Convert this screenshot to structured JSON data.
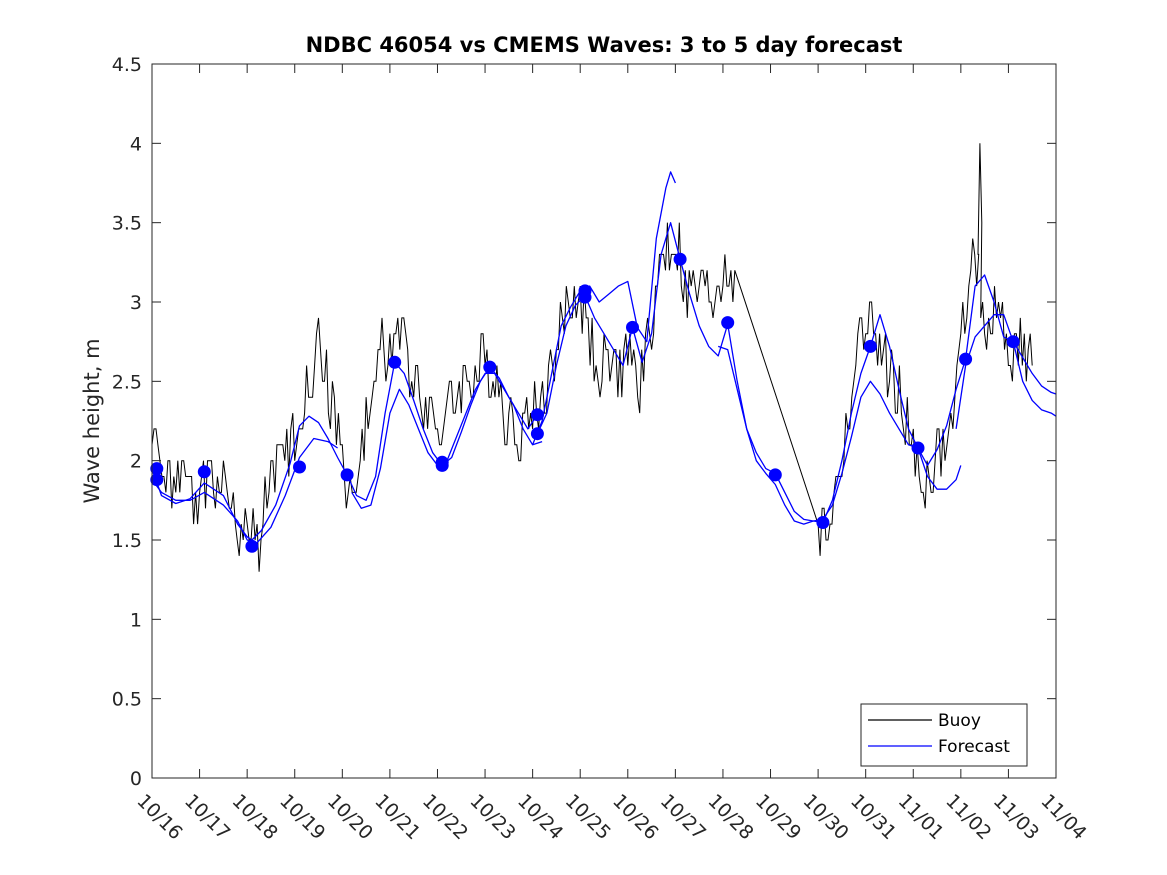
{
  "chart_data": {
    "type": "line",
    "title": "NDBC 46054 vs CMEMS Waves: 3 to 5 day forecast",
    "xlabel": "",
    "ylabel": "Wave height, m",
    "xlim": [
      0,
      19
    ],
    "ylim": [
      0,
      4.5
    ],
    "yticks": [
      0,
      0.5,
      1,
      1.5,
      2,
      2.5,
      3,
      3.5,
      4,
      4.5
    ],
    "ytick_labels": [
      "0",
      "0.5",
      "1",
      "1.5",
      "2",
      "2.5",
      "3",
      "3.5",
      "4",
      "4.5"
    ],
    "xticks": [
      0,
      1,
      2,
      3,
      4,
      5,
      6,
      7,
      8,
      9,
      10,
      11,
      12,
      13,
      14,
      15,
      16,
      17,
      18,
      19
    ],
    "xtick_labels": [
      "10/16",
      "10/17",
      "10/18",
      "10/19",
      "10/20",
      "10/21",
      "10/22",
      "10/23",
      "10/24",
      "10/25",
      "10/26",
      "10/27",
      "10/28",
      "10/29",
      "10/30",
      "10/31",
      "11/01",
      "11/02",
      "11/03",
      "11/04"
    ],
    "legend": {
      "position": "bottom-right",
      "entries": [
        "Buoy",
        "Forecast"
      ]
    },
    "colors": {
      "buoy": "#000000",
      "forecast": "#0000ff",
      "markers": "#0000ff",
      "axis": "#262626"
    },
    "buoy_anchors": {
      "x": [
        0.0,
        0.25,
        0.5,
        0.75,
        1.0,
        1.25,
        1.5,
        1.75,
        2.0,
        2.25,
        2.5,
        2.75,
        3.0,
        3.25,
        3.5,
        3.75,
        4.0,
        4.25,
        4.5,
        4.75,
        5.0,
        5.25,
        5.5,
        5.75,
        6.0,
        6.25,
        6.5,
        6.75,
        7.0,
        7.25,
        7.5,
        7.75,
        8.0,
        8.25,
        8.5,
        8.75,
        9.0,
        9.25,
        9.5,
        9.75,
        10.0,
        10.25,
        10.5,
        10.75,
        11.0,
        11.25,
        11.5,
        11.75,
        12.0,
        12.25,
        14.0,
        14.25,
        14.5,
        14.75,
        15.0,
        15.25,
        15.5,
        15.75,
        16.0,
        16.25,
        16.5,
        16.75,
        17.0,
        17.25,
        17.5,
        17.75,
        18.0,
        18.25,
        18.5
      ],
      "y": [
        2.1,
        2.05,
        1.8,
        1.8,
        1.85,
        1.95,
        1.85,
        1.6,
        1.5,
        1.5,
        1.9,
        1.95,
        2.2,
        2.5,
        2.7,
        2.4,
        2.0,
        1.7,
        2.2,
        2.7,
        2.7,
        2.8,
        2.5,
        2.4,
        2.2,
        2.3,
        2.5,
        2.5,
        2.6,
        2.5,
        2.2,
        2.2,
        2.3,
        2.4,
        2.7,
        3.0,
        3.05,
        2.7,
        2.6,
        2.5,
        2.7,
        2.4,
        2.9,
        3.3,
        3.4,
        3.0,
        3.1,
        3.0,
        3.2,
        3.2,
        1.55,
        1.6,
        2.0,
        2.5,
        2.9,
        2.7,
        2.6,
        2.4,
        2.0,
        1.85,
        2.0,
        2.1,
        2.7,
        3.4,
        2.9,
        2.9,
        2.7,
        2.7,
        2.6
      ],
      "spike": {
        "x": 17.4,
        "y": 4.0
      }
    },
    "forecast_series": [
      {
        "name": "forecast-run-1",
        "x": [
          0.0,
          0.2,
          0.5,
          0.8,
          1.1,
          1.5,
          1.8,
          2.0,
          2.1,
          2.3,
          2.6,
          2.9,
          3.1,
          3.3,
          3.5,
          3.7,
          3.9,
          4.1
        ],
        "y": [
          1.95,
          1.78,
          1.73,
          1.76,
          1.86,
          1.78,
          1.6,
          1.52,
          1.5,
          1.56,
          1.72,
          1.98,
          2.22,
          2.28,
          2.24,
          2.14,
          2.02,
          1.91
        ]
      },
      {
        "name": "forecast-run-2",
        "x": [
          0.0,
          0.2,
          0.5,
          0.8,
          1.1,
          1.5,
          1.8,
          2.0,
          2.2,
          2.5,
          2.8,
          3.1,
          3.4,
          3.7,
          3.9
        ],
        "y": [
          1.88,
          1.8,
          1.75,
          1.75,
          1.8,
          1.72,
          1.62,
          1.5,
          1.48,
          1.58,
          1.78,
          2.02,
          2.14,
          2.12,
          2.08
        ]
      },
      {
        "name": "forecast-run-3",
        "x": [
          4.1,
          4.3,
          4.5,
          4.7,
          4.9,
          5.1,
          5.3,
          5.5,
          5.7,
          5.9,
          6.1,
          6.3,
          6.5,
          6.7,
          6.9,
          7.1,
          7.3,
          7.5,
          7.7,
          7.9,
          8.1
        ],
        "y": [
          1.91,
          1.78,
          1.75,
          1.9,
          2.3,
          2.62,
          2.55,
          2.38,
          2.2,
          2.05,
          1.97,
          2.02,
          2.18,
          2.35,
          2.5,
          2.59,
          2.52,
          2.4,
          2.3,
          2.2,
          2.29
        ]
      },
      {
        "name": "forecast-run-4",
        "x": [
          4.2,
          4.4,
          4.6,
          4.8,
          5.0,
          5.2,
          5.4,
          5.6,
          5.8,
          6.0,
          6.2,
          6.4,
          6.6,
          6.8,
          7.0,
          7.2,
          7.4,
          7.6,
          7.8,
          8.0,
          8.2
        ],
        "y": [
          1.8,
          1.7,
          1.72,
          1.95,
          2.3,
          2.45,
          2.35,
          2.2,
          2.05,
          1.97,
          2.0,
          2.15,
          2.3,
          2.45,
          2.55,
          2.55,
          2.45,
          2.35,
          2.2,
          2.1,
          2.12
        ]
      },
      {
        "name": "forecast-run-5",
        "x": [
          8.1,
          8.3,
          8.5,
          8.7,
          8.9,
          9.1,
          9.3,
          9.5,
          9.7,
          9.9,
          10.1,
          10.3,
          10.5,
          10.7,
          10.9,
          11.1,
          11.3,
          11.5,
          11.7,
          11.9,
          12.1
        ],
        "y": [
          2.17,
          2.3,
          2.6,
          2.85,
          2.98,
          3.04,
          2.9,
          2.8,
          2.7,
          2.6,
          2.84,
          2.62,
          2.8,
          3.3,
          3.5,
          3.27,
          3.05,
          2.85,
          2.72,
          2.66,
          2.86
        ]
      },
      {
        "name": "forecast-run-6",
        "x": [
          8.0,
          8.2,
          8.4,
          8.6,
          8.8,
          9.0,
          9.2,
          9.4,
          9.6,
          9.8,
          10.0,
          10.2,
          10.4,
          10.6,
          10.8,
          10.9,
          11.0
        ],
        "y": [
          2.1,
          2.25,
          2.55,
          2.85,
          2.97,
          3.07,
          3.1,
          3.0,
          3.05,
          3.1,
          3.13,
          2.84,
          2.75,
          3.4,
          3.72,
          3.82,
          3.75
        ]
      },
      {
        "name": "forecast-run-7",
        "x": [
          12.1,
          12.3,
          12.5,
          12.7,
          12.9,
          13.1,
          13.3,
          13.5,
          13.7,
          13.9,
          14.1,
          14.3,
          14.5,
          14.7,
          14.9,
          15.1,
          15.3,
          15.5,
          15.7,
          15.9,
          16.1
        ],
        "y": [
          2.86,
          2.5,
          2.2,
          2.05,
          1.95,
          1.92,
          1.8,
          1.68,
          1.63,
          1.62,
          1.61,
          1.75,
          2.0,
          2.3,
          2.55,
          2.72,
          2.92,
          2.72,
          2.45,
          2.2,
          2.08
        ]
      },
      {
        "name": "forecast-run-8",
        "x": [
          11.9,
          12.1,
          12.3,
          12.5,
          12.7,
          12.9,
          13.1,
          13.3,
          13.5,
          13.7,
          13.9,
          14.1,
          14.3,
          14.5,
          14.7,
          14.9,
          15.1,
          15.3,
          15.5,
          15.7,
          15.9,
          16.1
        ],
        "y": [
          2.72,
          2.7,
          2.45,
          2.2,
          2.0,
          1.92,
          1.85,
          1.72,
          1.62,
          1.6,
          1.62,
          1.63,
          1.72,
          1.92,
          2.15,
          2.4,
          2.5,
          2.42,
          2.3,
          2.2,
          2.1,
          2.08
        ]
      },
      {
        "name": "forecast-run-9",
        "x": [
          16.1,
          16.3,
          16.5,
          16.7,
          16.9,
          17.1,
          17.3,
          17.5,
          17.7,
          17.9,
          18.1,
          18.3,
          18.5,
          18.7,
          18.9,
          19.0
        ],
        "y": [
          2.08,
          1.97,
          2.07,
          2.22,
          2.45,
          2.64,
          3.1,
          3.17,
          3.0,
          2.78,
          2.75,
          2.65,
          2.55,
          2.47,
          2.43,
          2.42
        ]
      },
      {
        "name": "forecast-run-10",
        "x": [
          16.1,
          16.3,
          16.5,
          16.7,
          16.9,
          17.0
        ],
        "y": [
          2.08,
          1.9,
          1.82,
          1.82,
          1.88,
          1.97
        ]
      },
      {
        "name": "forecast-run-11",
        "x": [
          16.9,
          17.1,
          17.3,
          17.5,
          17.7,
          17.9,
          18.1,
          18.3,
          18.5,
          18.7,
          18.9,
          19.0
        ],
        "y": [
          2.2,
          2.6,
          2.78,
          2.85,
          2.92,
          2.92,
          2.75,
          2.5,
          2.38,
          2.32,
          2.3,
          2.28
        ]
      }
    ],
    "forecast_points": {
      "x": [
        0.1,
        0.1,
        1.1,
        2.1,
        3.1,
        4.1,
        5.1,
        6.1,
        6.1,
        7.1,
        8.1,
        8.1,
        9.1,
        9.1,
        10.1,
        11.1,
        12.1,
        13.1,
        14.1,
        15.1,
        16.1,
        17.1,
        18.1
      ],
      "y": [
        1.95,
        1.88,
        1.93,
        1.46,
        1.96,
        1.91,
        2.62,
        1.99,
        1.97,
        2.59,
        2.29,
        2.17,
        3.07,
        3.03,
        2.84,
        3.27,
        2.87,
        1.91,
        1.61,
        2.72,
        2.08,
        2.64,
        2.75
      ]
    }
  }
}
